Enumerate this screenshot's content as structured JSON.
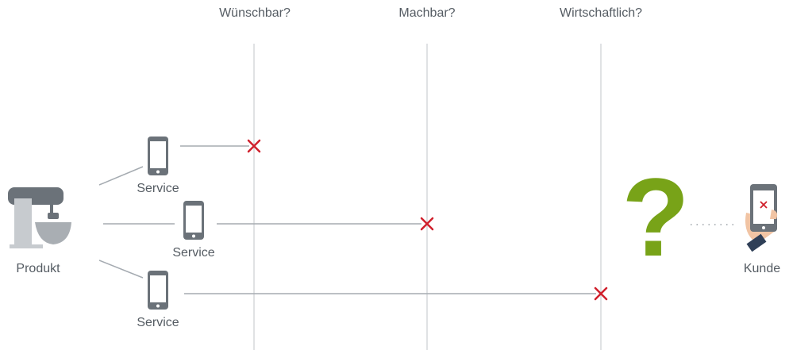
{
  "columns": [
    {
      "label": "Wünschbar?"
    },
    {
      "label": "Machbar?"
    },
    {
      "label": "Wirtschaftlich?"
    }
  ],
  "product": {
    "label": "Produkt"
  },
  "services": [
    {
      "label": "Service"
    },
    {
      "label": "Service"
    },
    {
      "label": "Service"
    }
  ],
  "question": "?",
  "customer": {
    "label": "Kunde"
  }
}
